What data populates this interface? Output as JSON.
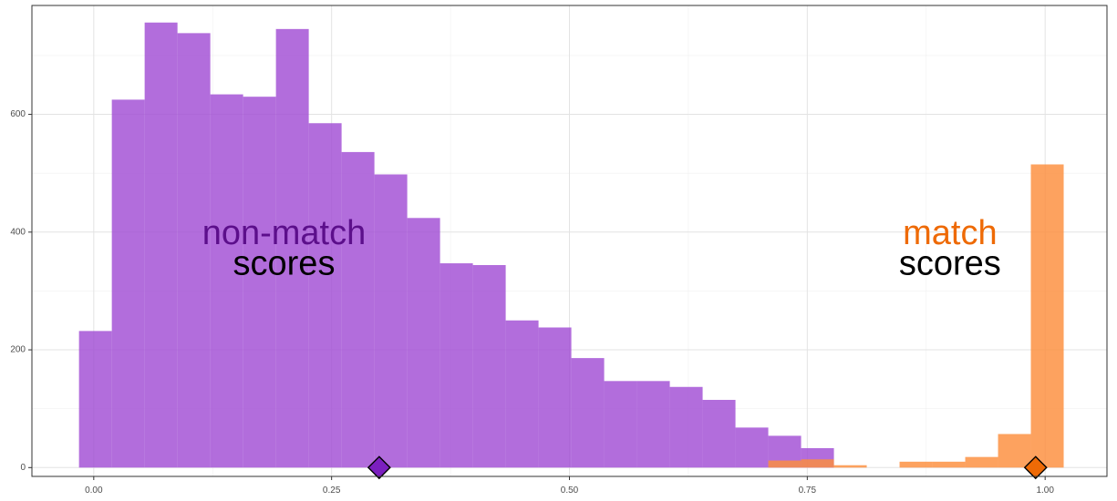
{
  "chart_data": {
    "type": "histogram",
    "title": "",
    "xlabel": "",
    "ylabel": "",
    "xlim": [
      -0.065,
      1.065
    ],
    "ylim": [
      -15,
      785
    ],
    "grid": true,
    "bin_width": 0.0345,
    "x_ticks": [
      0.0,
      0.25,
      0.5,
      0.75,
      1.0
    ],
    "x_tick_labels": [
      "0.00",
      "0.25",
      "0.50",
      "0.75",
      "1.00"
    ],
    "y_ticks": [
      0,
      200,
      400,
      600
    ],
    "y_tick_labels": [
      "0",
      "200",
      "400",
      "600"
    ],
    "series": [
      {
        "name": "non-match",
        "color": "#a14dd4",
        "bins": [
          {
            "x0": -0.0155,
            "x1": 0.019,
            "count": 232
          },
          {
            "x0": 0.019,
            "x1": 0.0535,
            "count": 625
          },
          {
            "x0": 0.0535,
            "x1": 0.088,
            "count": 756
          },
          {
            "x0": 0.088,
            "x1": 0.1225,
            "count": 738
          },
          {
            "x0": 0.1225,
            "x1": 0.157,
            "count": 634
          },
          {
            "x0": 0.157,
            "x1": 0.1915,
            "count": 630
          },
          {
            "x0": 0.1915,
            "x1": 0.226,
            "count": 745
          },
          {
            "x0": 0.226,
            "x1": 0.2605,
            "count": 585
          },
          {
            "x0": 0.2605,
            "x1": 0.295,
            "count": 536
          },
          {
            "x0": 0.295,
            "x1": 0.3295,
            "count": 498
          },
          {
            "x0": 0.3295,
            "x1": 0.364,
            "count": 424
          },
          {
            "x0": 0.364,
            "x1": 0.3985,
            "count": 347
          },
          {
            "x0": 0.3985,
            "x1": 0.433,
            "count": 344
          },
          {
            "x0": 0.433,
            "x1": 0.4675,
            "count": 250
          },
          {
            "x0": 0.4675,
            "x1": 0.502,
            "count": 238
          },
          {
            "x0": 0.502,
            "x1": 0.5365,
            "count": 186
          },
          {
            "x0": 0.5365,
            "x1": 0.571,
            "count": 147
          },
          {
            "x0": 0.571,
            "x1": 0.6055,
            "count": 147
          },
          {
            "x0": 0.6055,
            "x1": 0.64,
            "count": 137
          },
          {
            "x0": 0.64,
            "x1": 0.6745,
            "count": 115
          },
          {
            "x0": 0.6745,
            "x1": 0.709,
            "count": 68
          },
          {
            "x0": 0.709,
            "x1": 0.7435,
            "count": 54
          },
          {
            "x0": 0.7435,
            "x1": 0.778,
            "count": 33
          }
        ],
        "marker_x": 0.3
      },
      {
        "name": "match",
        "color": "#fd8d3c",
        "bins": [
          {
            "x0": 0.709,
            "x1": 0.7435,
            "count": 12
          },
          {
            "x0": 0.7435,
            "x1": 0.778,
            "count": 14
          },
          {
            "x0": 0.778,
            "x1": 0.8125,
            "count": 4
          },
          {
            "x0": 0.8125,
            "x1": 0.847,
            "count": 0
          },
          {
            "x0": 0.847,
            "x1": 0.8815,
            "count": 10
          },
          {
            "x0": 0.8815,
            "x1": 0.916,
            "count": 10
          },
          {
            "x0": 0.916,
            "x1": 0.9505,
            "count": 18
          },
          {
            "x0": 0.9505,
            "x1": 0.985,
            "count": 57
          },
          {
            "x0": 0.985,
            "x1": 1.0195,
            "count": 515
          }
        ],
        "marker_x": 0.99
      }
    ],
    "annotations": [
      {
        "x": 0.2,
        "y": 395,
        "text": "non-match",
        "color": "#5c0f8b"
      },
      {
        "x": 0.2,
        "y": 343,
        "text": "scores",
        "color": "#000000"
      },
      {
        "x": 0.9,
        "y": 395,
        "text": "match",
        "color": "#ee6a06"
      },
      {
        "x": 0.9,
        "y": 343,
        "text": "scores",
        "color": "#000000"
      }
    ],
    "marker_colors": {
      "non-match": "#7b1fbf",
      "match": "#ee6a06"
    }
  }
}
